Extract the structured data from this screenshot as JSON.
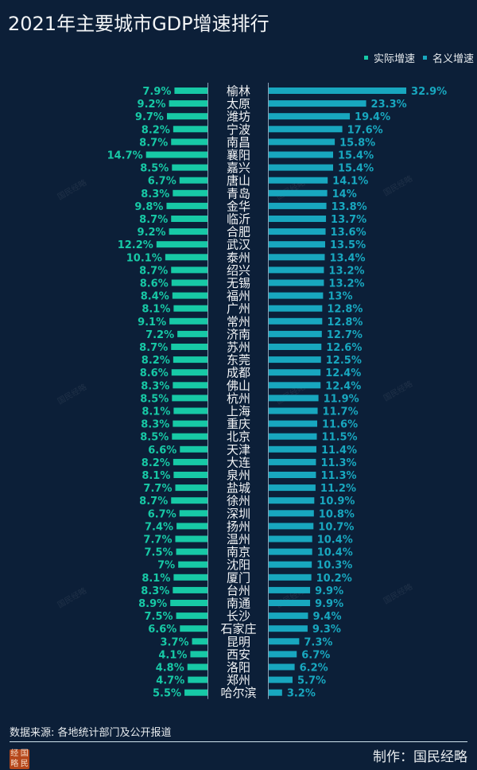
{
  "title": "2021年主要城市GDP增速排行",
  "colors": {
    "background": "#0c1f38",
    "real": "#17c9a6",
    "nominal": "#18a7bf",
    "city_text": "#f2f4f6"
  },
  "watermark": "国民经略",
  "chart_data": {
    "type": "bar",
    "orientation": "horizontal-butterfly",
    "title": "2021年主要城市GDP增速排行",
    "unit": "%",
    "legend_position": "top-right",
    "grid": false,
    "categories": [
      "榆林",
      "太原",
      "潍坊",
      "宁波",
      "南昌",
      "襄阳",
      "嘉兴",
      "唐山",
      "青岛",
      "金华",
      "临沂",
      "合肥",
      "武汉",
      "泰州",
      "绍兴",
      "无锡",
      "福州",
      "广州",
      "常州",
      "济南",
      "苏州",
      "东莞",
      "成都",
      "佛山",
      "杭州",
      "上海",
      "重庆",
      "北京",
      "天津",
      "大连",
      "泉州",
      "盐城",
      "徐州",
      "深圳",
      "扬州",
      "温州",
      "南京",
      "沈阳",
      "厦门",
      "台州",
      "南通",
      "长沙",
      "石家庄",
      "昆明",
      "西安",
      "洛阳",
      "郑州",
      "哈尔滨"
    ],
    "series": [
      {
        "name": "实际增速",
        "side": "left",
        "values": [
          7.9,
          9.2,
          9.7,
          8.2,
          8.7,
          14.7,
          8.5,
          6.7,
          8.3,
          9.8,
          8.7,
          9.2,
          12.2,
          10.1,
          8.7,
          8.6,
          8.4,
          8.1,
          9.1,
          7.2,
          8.7,
          8.2,
          8.6,
          8.3,
          8.5,
          8.1,
          8.3,
          8.5,
          6.6,
          8.2,
          8.1,
          7.7,
          8.7,
          6.7,
          7.4,
          7.7,
          7.5,
          7,
          8.1,
          8.3,
          8.9,
          7.5,
          6.6,
          3.7,
          4.1,
          4.8,
          4.7,
          5.5
        ]
      },
      {
        "name": "名义增速",
        "side": "right",
        "values": [
          32.9,
          23.3,
          19.4,
          17.6,
          15.8,
          15.4,
          15.4,
          14.1,
          14,
          13.8,
          13.7,
          13.6,
          13.5,
          13.4,
          13.2,
          13.2,
          13,
          12.8,
          12.8,
          12.7,
          12.6,
          12.5,
          12.4,
          12.4,
          11.9,
          11.7,
          11.6,
          11.5,
          11.4,
          11.3,
          11.3,
          11.2,
          10.9,
          10.8,
          10.7,
          10.4,
          10.4,
          10.3,
          10.2,
          9.9,
          9.9,
          9.4,
          9.3,
          7.3,
          6.7,
          6.2,
          5.7,
          3.2
        ]
      }
    ]
  },
  "footer": {
    "source": "数据来源: 各地统计部门及公开报道",
    "maker": "制作：国民经略",
    "seal_chars": [
      "经",
      "国",
      "略",
      "民"
    ]
  }
}
